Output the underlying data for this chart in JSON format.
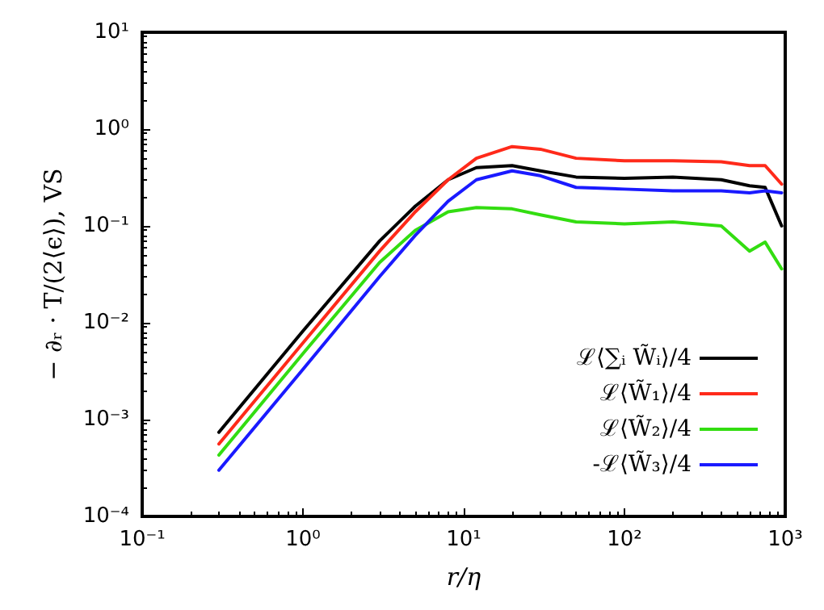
{
  "chart_data": {
    "type": "line",
    "xlabel": "r/η",
    "ylabel": "− ∂ᵣ · T/(2⟨ϵ⟩), VS",
    "log": "xy",
    "grid": false,
    "legend": "bottom right",
    "marker": "none",
    "line_style": "solid",
    "xlim": [
      0.1,
      1000
    ],
    "ylim": [
      0.0001,
      10
    ],
    "xticks": [
      {
        "value": 0.1,
        "label": "10⁻¹"
      },
      {
        "value": 1,
        "label": "10⁰"
      },
      {
        "value": 10,
        "label": "10¹"
      },
      {
        "value": 100,
        "label": "10²"
      },
      {
        "value": 1000,
        "label": "10³"
      }
    ],
    "yticks": [
      {
        "value": 0.0001,
        "label": "10⁻⁴"
      },
      {
        "value": 0.001,
        "label": "10⁻³"
      },
      {
        "value": 0.01,
        "label": "10⁻²"
      },
      {
        "value": 0.1,
        "label": "10⁻¹"
      },
      {
        "value": 1,
        "label": "10⁰"
      },
      {
        "value": 10,
        "label": "10¹"
      }
    ],
    "x": [
      0.3,
      1,
      3,
      5,
      8,
      12,
      20,
      30,
      50,
      100,
      200,
      400,
      600,
      750,
      950
    ],
    "series": [
      {
        "name": "ℒ⟨∑ᵢ W̃ᵢ⟩/4",
        "color": "#000000",
        "values": [
          0.00074,
          0.0082,
          0.07,
          0.16,
          0.3,
          0.4,
          0.42,
          0.37,
          0.32,
          0.31,
          0.32,
          0.3,
          0.26,
          0.25,
          0.1
        ]
      },
      {
        "name": "ℒ⟨W̃₁⟩/4",
        "color": "#ff2a1a",
        "values": [
          0.00056,
          0.0062,
          0.055,
          0.14,
          0.3,
          0.5,
          0.66,
          0.62,
          0.5,
          0.47,
          0.47,
          0.46,
          0.42,
          0.42,
          0.27
        ]
      },
      {
        "name": "ℒ⟨W̃₂⟩/4",
        "color": "#33dd11",
        "values": [
          0.00043,
          0.0048,
          0.042,
          0.09,
          0.14,
          0.155,
          0.15,
          0.13,
          0.11,
          0.105,
          0.11,
          0.1,
          0.055,
          0.068,
          0.036
        ]
      },
      {
        "name": "-ℒ⟨W̃₃⟩/4",
        "color": "#1a1aff",
        "values": [
          0.0003,
          0.0033,
          0.03,
          0.08,
          0.18,
          0.3,
          0.37,
          0.33,
          0.25,
          0.24,
          0.23,
          0.23,
          0.22,
          0.23,
          0.22
        ]
      }
    ]
  }
}
